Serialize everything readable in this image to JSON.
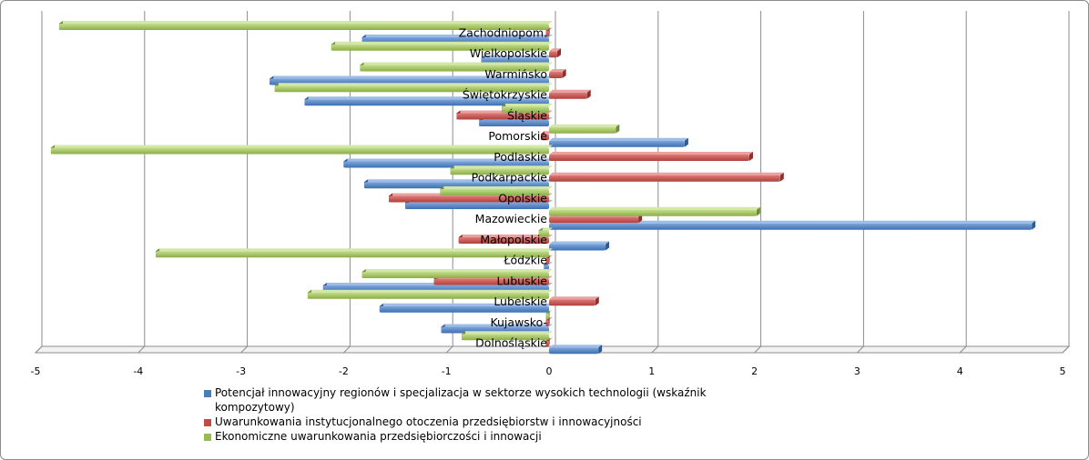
{
  "chart_data": {
    "type": "bar",
    "orientation": "horizontal",
    "style": "3d-clustered",
    "categories": [
      "Dolnośląskie",
      "Kujawsko-",
      "Lubelskie",
      "Lubuskie",
      "Łódzkie",
      "Małopolskie",
      "Mazowieckie",
      "Opolskie",
      "Podkarpackie",
      "Podlaskie",
      "Pomorskie",
      "Śląskie",
      "Świętokrzyskie",
      "Warmińsko",
      "Wielkopolskie",
      "Zachodniopom."
    ],
    "series": [
      {
        "name": "Potencjał innowacyjny regionów i specjalizacja w sektorze wysokich technologii (wskaźnik kompozytowy)",
        "color": "#4a7ebb",
        "values": [
          0.48,
          -1.05,
          -1.65,
          -2.2,
          -0.05,
          0.55,
          4.7,
          -1.4,
          -1.8,
          -2.0,
          1.32,
          -0.68,
          -2.38,
          -2.72,
          -0.66,
          -1.82
        ]
      },
      {
        "name": "Uwarunkowania instytucjonalnego otoczenia przedsiębiorstw i innowacyjności",
        "color": "#be4b48",
        "values": [
          -0.03,
          -0.03,
          0.45,
          -1.12,
          -0.03,
          -0.88,
          0.87,
          -1.56,
          2.25,
          1.95,
          -0.08,
          -0.9,
          0.37,
          0.13,
          0.08,
          -0.03
        ]
      },
      {
        "name": "Ekonomiczne uwarunkowania przedsiębiorczości i innowacji",
        "color": "#98b954",
        "values": [
          -0.85,
          -0.03,
          -2.35,
          -1.82,
          -3.83,
          -0.1,
          2.02,
          -1.06,
          -0.96,
          -4.85,
          0.65,
          -0.46,
          -2.67,
          -1.84,
          -2.12,
          -4.77
        ]
      }
    ],
    "x_ticks": [
      "-5",
      "-4",
      "-3",
      "-2",
      "-1",
      "0",
      "1",
      "2",
      "3",
      "4",
      "5"
    ],
    "xlim": [
      -5,
      5
    ],
    "grid": "vertical-major",
    "legend_position": "bottom"
  }
}
